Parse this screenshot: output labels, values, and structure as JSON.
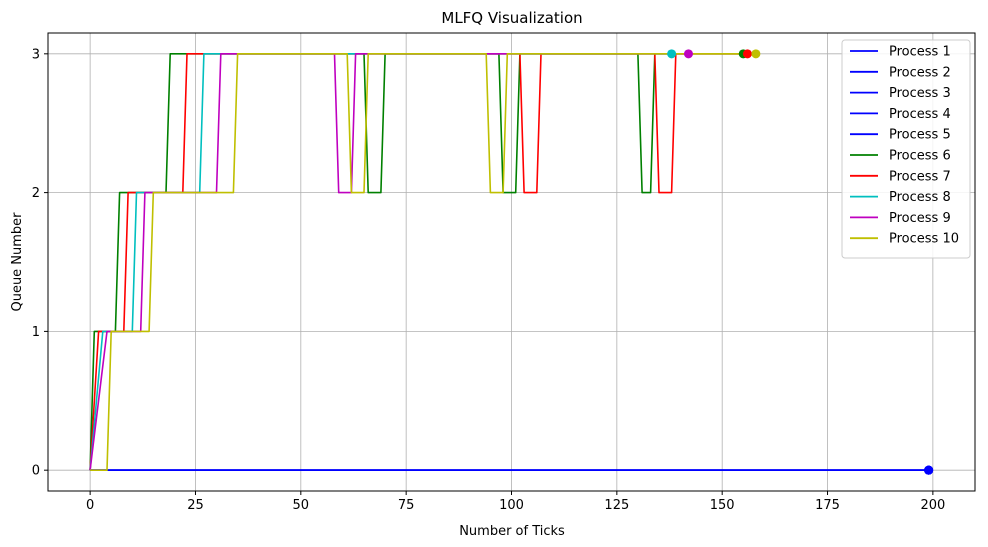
{
  "chart_data": {
    "type": "line",
    "title": "MLFQ Visualization",
    "xlabel": "Number of Ticks",
    "ylabel": "Queue Number",
    "xlim": [
      -10,
      210
    ],
    "ylim": [
      -0.15,
      3.15
    ],
    "xticks": [
      0,
      25,
      50,
      75,
      100,
      125,
      150,
      175,
      200
    ],
    "yticks": [
      0,
      1,
      2,
      3
    ],
    "grid": true,
    "legend_position": "top-right",
    "series": [
      {
        "name": "Process 1",
        "color": "#0000ff",
        "points": [
          [
            0,
            0
          ],
          [
            199,
            0
          ]
        ],
        "end": [
          199,
          0
        ]
      },
      {
        "name": "Process 2",
        "color": "#0000ff",
        "points": [
          [
            0,
            0
          ],
          [
            199,
            0
          ]
        ],
        "end": [
          199,
          0
        ]
      },
      {
        "name": "Process 3",
        "color": "#0000ff",
        "points": [
          [
            0,
            0
          ],
          [
            199,
            0
          ]
        ],
        "end": [
          199,
          0
        ]
      },
      {
        "name": "Process 4",
        "color": "#0000ff",
        "points": [
          [
            0,
            0
          ],
          [
            199,
            0
          ]
        ],
        "end": [
          199,
          0
        ]
      },
      {
        "name": "Process 5",
        "color": "#0000ff",
        "points": [
          [
            0,
            0
          ],
          [
            199,
            0
          ]
        ],
        "end": [
          199,
          0
        ]
      },
      {
        "name": "Process 6",
        "color": "#008000",
        "points": [
          [
            0,
            0
          ],
          [
            1,
            1
          ],
          [
            6,
            1
          ],
          [
            7,
            2
          ],
          [
            18,
            2
          ],
          [
            19,
            3
          ],
          [
            65,
            3
          ],
          [
            66,
            2
          ],
          [
            69,
            2
          ],
          [
            70,
            3
          ],
          [
            97,
            3
          ],
          [
            98,
            2
          ],
          [
            101,
            2
          ],
          [
            102,
            3
          ],
          [
            130,
            3
          ],
          [
            131,
            2
          ],
          [
            133,
            2
          ],
          [
            134,
            3
          ],
          [
            155,
            3
          ]
        ],
        "end": [
          155,
          3
        ]
      },
      {
        "name": "Process 7",
        "color": "#ff0000",
        "points": [
          [
            0,
            0
          ],
          [
            2,
            1
          ],
          [
            8,
            1
          ],
          [
            9,
            2
          ],
          [
            22,
            2
          ],
          [
            23,
            3
          ],
          [
            102,
            3
          ],
          [
            103,
            2
          ],
          [
            106,
            2
          ],
          [
            107,
            3
          ],
          [
            134,
            3
          ],
          [
            135,
            2
          ],
          [
            138,
            2
          ],
          [
            139,
            3
          ],
          [
            156,
            3
          ]
        ],
        "end": [
          156,
          3
        ]
      },
      {
        "name": "Process 8",
        "color": "#00bfbf",
        "points": [
          [
            0,
            0
          ],
          [
            3,
            1
          ],
          [
            10,
            1
          ],
          [
            11,
            2
          ],
          [
            26,
            2
          ],
          [
            27,
            3
          ],
          [
            138,
            3
          ]
        ],
        "end": [
          138,
          3
        ]
      },
      {
        "name": "Process 9",
        "color": "#bf00bf",
        "points": [
          [
            0,
            0
          ],
          [
            4,
            1
          ],
          [
            12,
            1
          ],
          [
            13,
            2
          ],
          [
            30,
            2
          ],
          [
            31,
            3
          ],
          [
            58,
            3
          ],
          [
            59,
            2
          ],
          [
            62,
            2
          ],
          [
            63,
            3
          ],
          [
            142,
            3
          ]
        ],
        "end": [
          142,
          3
        ]
      },
      {
        "name": "Process 10",
        "color": "#bfbf00",
        "points": [
          [
            0,
            0
          ],
          [
            4,
            0
          ],
          [
            5,
            1
          ],
          [
            14,
            1
          ],
          [
            15,
            2
          ],
          [
            34,
            2
          ],
          [
            35,
            3
          ],
          [
            61,
            3
          ],
          [
            62,
            2
          ],
          [
            65,
            2
          ],
          [
            66,
            3
          ],
          [
            94,
            3
          ],
          [
            95,
            2
          ],
          [
            98,
            2
          ],
          [
            99,
            3
          ],
          [
            158,
            3
          ]
        ],
        "end": [
          158,
          3
        ]
      }
    ]
  }
}
